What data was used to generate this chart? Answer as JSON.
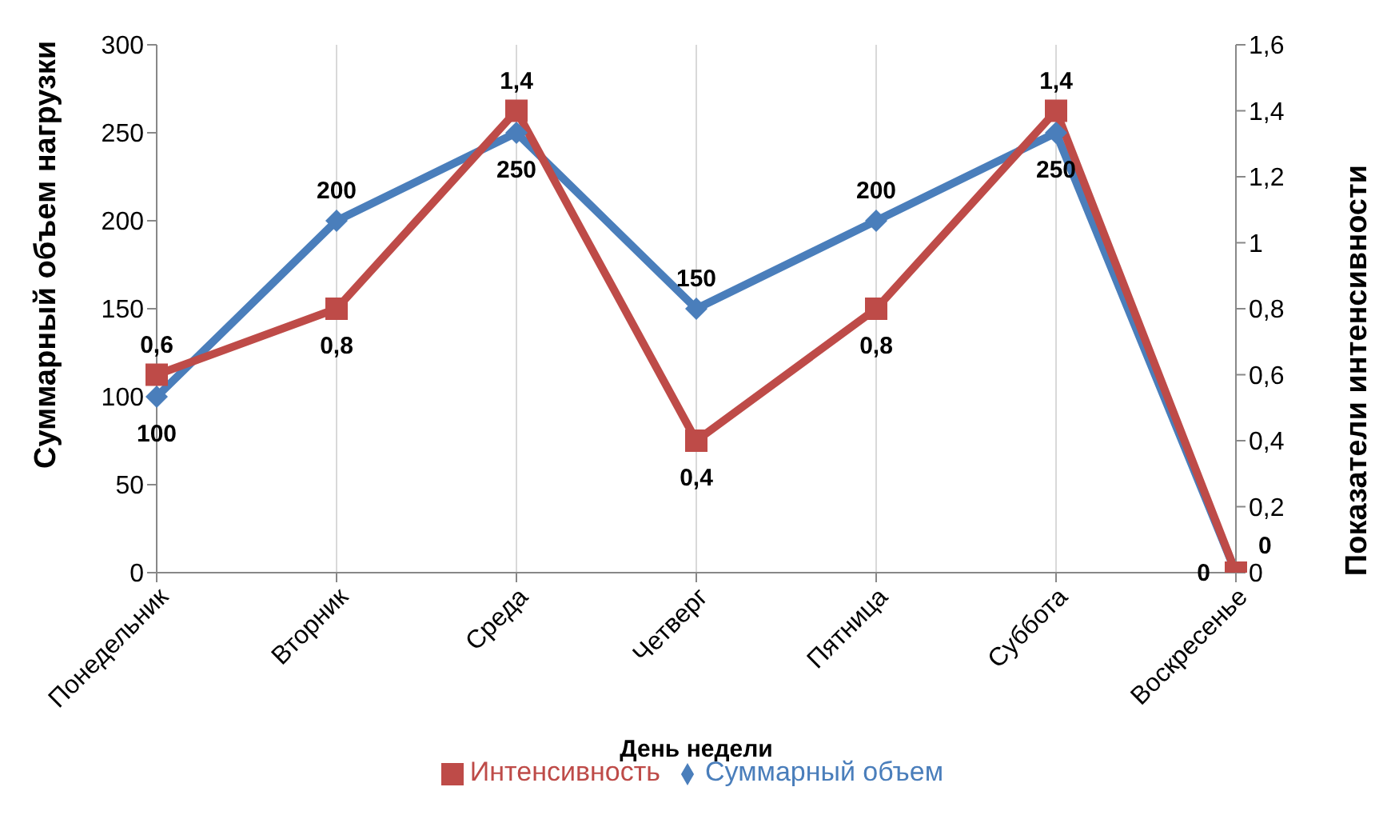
{
  "chart_data": {
    "type": "line",
    "xlabel": "День недели",
    "ylabel": "Суммарный объем нагрузки",
    "y2label": "Показатели интенсивности",
    "categories": [
      "Понедельник",
      "Вторник",
      "Среда",
      "Четверг",
      "Пятница",
      "Суббота",
      "Воскресенье"
    ],
    "series": [
      {
        "name": "Суммарный объем",
        "color": "#4a7ebb",
        "marker": "diamond",
        "values": [
          100,
          200,
          250,
          150,
          200,
          250,
          0
        ],
        "value_labels": [
          "100",
          "200",
          "250",
          "150",
          "200",
          "250",
          "0"
        ]
      },
      {
        "name": "Интенсивность",
        "color": "#be4b48",
        "marker": "square",
        "axis": "y2",
        "values": [
          0.6,
          0.8,
          1.4,
          0.4,
          0.8,
          1.4,
          0
        ],
        "value_labels": [
          "0,6",
          "0,8",
          "1,4",
          "0,4",
          "0,8",
          "1,4",
          "0"
        ]
      }
    ],
    "ylim": [
      0,
      300
    ],
    "yticks": [
      0,
      50,
      100,
      150,
      200,
      250,
      300
    ],
    "y2lim": [
      0,
      1.6
    ],
    "y2ticks": [
      0,
      {
        "value": 0.2,
        "label": "0,2"
      },
      {
        "value": 0.4,
        "label": "0,4"
      },
      {
        "value": 0.6,
        "label": "0,6"
      },
      {
        "value": 0.8,
        "label": "0,8"
      },
      1,
      {
        "value": 1.2,
        "label": "1,2"
      },
      {
        "value": 1.4,
        "label": "1,4"
      },
      {
        "value": 1.6,
        "label": "1,6"
      }
    ],
    "grid": "x",
    "legend": "bottom"
  }
}
